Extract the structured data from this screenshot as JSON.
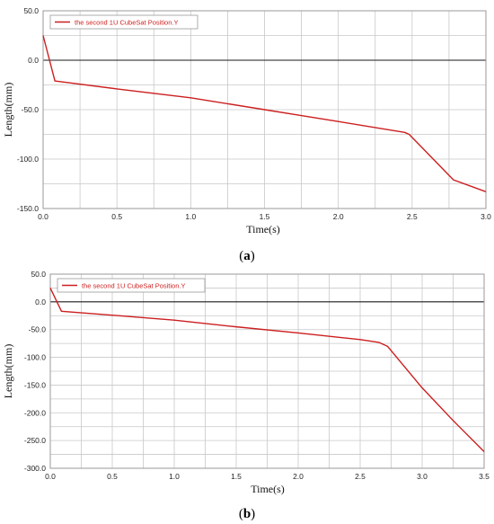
{
  "colors": {
    "series": "#cc1f1f",
    "grid": "#c8c8c8",
    "zero_line": "#1a1a1a",
    "frame": "#9a9a9a"
  },
  "chart_data": [
    {
      "type": "line",
      "caption_letter": "a",
      "xlabel": "Time(s)",
      "ylabel": "Length(mm)",
      "xlim": [
        0.0,
        3.0
      ],
      "ylim": [
        -150.0,
        50.0
      ],
      "xticks": [
        "0.0",
        "0.5",
        "1.0",
        "1.5",
        "2.0",
        "2.5",
        "3.0"
      ],
      "xtick_values": [
        0.0,
        0.5,
        1.0,
        1.5,
        2.0,
        2.5,
        3.0
      ],
      "yticks": [
        "50.0",
        "0.0",
        "-50.0",
        "-100.0",
        "-150.0"
      ],
      "ytick_values": [
        50,
        0,
        -50,
        -100,
        -150
      ],
      "grid": true,
      "legend_position": "top-left",
      "series": [
        {
          "name": "the second 1U CubeSat Position.Y",
          "x": [
            0.0,
            0.08,
            0.5,
            1.0,
            1.5,
            2.0,
            2.45,
            2.48,
            2.78,
            3.0
          ],
          "y": [
            25,
            -21,
            -29,
            -38,
            -50,
            -62,
            -73,
            -75,
            -121,
            -133
          ]
        }
      ]
    },
    {
      "type": "line",
      "caption_letter": "b",
      "xlabel": "Time(s)",
      "ylabel": "Length(mm)",
      "xlim": [
        0.0,
        3.5
      ],
      "ylim": [
        -300.0,
        50.0
      ],
      "xticks": [
        "0.0",
        "0.5",
        "1.0",
        "1.5",
        "2.0",
        "2.5",
        "3.0",
        "3.5"
      ],
      "xtick_values": [
        0.0,
        0.5,
        1.0,
        1.5,
        2.0,
        2.5,
        3.0,
        3.5
      ],
      "yticks": [
        "50.0",
        "0.0",
        "-50.0",
        "-100.0",
        "-150.0",
        "-200.0",
        "-250.0",
        "-300.0"
      ],
      "ytick_values": [
        50,
        0,
        -50,
        -100,
        -150,
        -200,
        -250,
        -300
      ],
      "grid": true,
      "legend_position": "top-left",
      "series": [
        {
          "name": "the second 1U CubeSat Position.Y",
          "x": [
            0.0,
            0.09,
            0.5,
            1.0,
            1.5,
            2.0,
            2.5,
            2.65,
            2.72,
            3.0,
            3.25,
            3.5
          ],
          "y": [
            25,
            -17,
            -24,
            -33,
            -45,
            -56,
            -68,
            -73,
            -80,
            -155,
            -214,
            -270
          ]
        }
      ]
    }
  ]
}
